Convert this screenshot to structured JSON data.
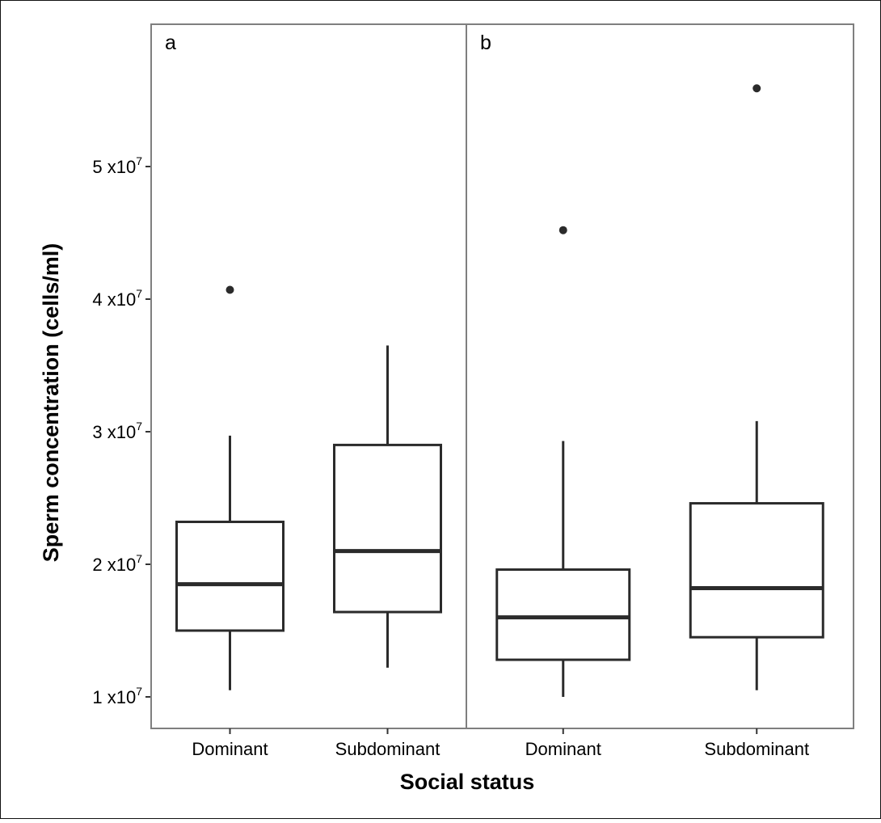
{
  "chart_data": {
    "type": "box",
    "xlabel": "Social status",
    "ylabel": "Sperm concentration (cells/ml)",
    "y_ticks": [
      {
        "value": 10000000,
        "mantissa": "1",
        "unit": "x10",
        "exp": "7"
      },
      {
        "value": 20000000,
        "mantissa": "2",
        "unit": "x10",
        "exp": "7"
      },
      {
        "value": 30000000,
        "mantissa": "3",
        "unit": "x10",
        "exp": "7"
      },
      {
        "value": 40000000,
        "mantissa": "4",
        "unit": "x10",
        "exp": "7"
      },
      {
        "value": 50000000,
        "mantissa": "5",
        "unit": "x10",
        "exp": "7"
      }
    ],
    "ylim": [
      7500000,
      58000000
    ],
    "grid": false,
    "panels": [
      {
        "label": "a",
        "categories": [
          "Dominant",
          "Subdominant"
        ],
        "boxes": [
          {
            "category": "Dominant",
            "whisker_low": 10500000,
            "q1": 15000000,
            "median": 18500000,
            "q3": 23200000,
            "whisker_high": 29700000,
            "outliers": [
              40700000
            ]
          },
          {
            "category": "Subdominant",
            "whisker_low": 12200000,
            "q1": 16400000,
            "median": 21000000,
            "q3": 29000000,
            "whisker_high": 36500000,
            "outliers": []
          }
        ]
      },
      {
        "label": "b",
        "categories": [
          "Dominant",
          "Subdominant"
        ],
        "boxes": [
          {
            "category": "Dominant",
            "whisker_low": 10000000,
            "q1": 12800000,
            "median": 16000000,
            "q3": 19600000,
            "whisker_high": 29300000,
            "outliers": [
              45200000
            ]
          },
          {
            "category": "Subdominant",
            "whisker_low": 10500000,
            "q1": 14500000,
            "median": 18200000,
            "q3": 24600000,
            "whisker_high": 30800000,
            "outliers": [
              55900000
            ]
          }
        ]
      }
    ]
  }
}
